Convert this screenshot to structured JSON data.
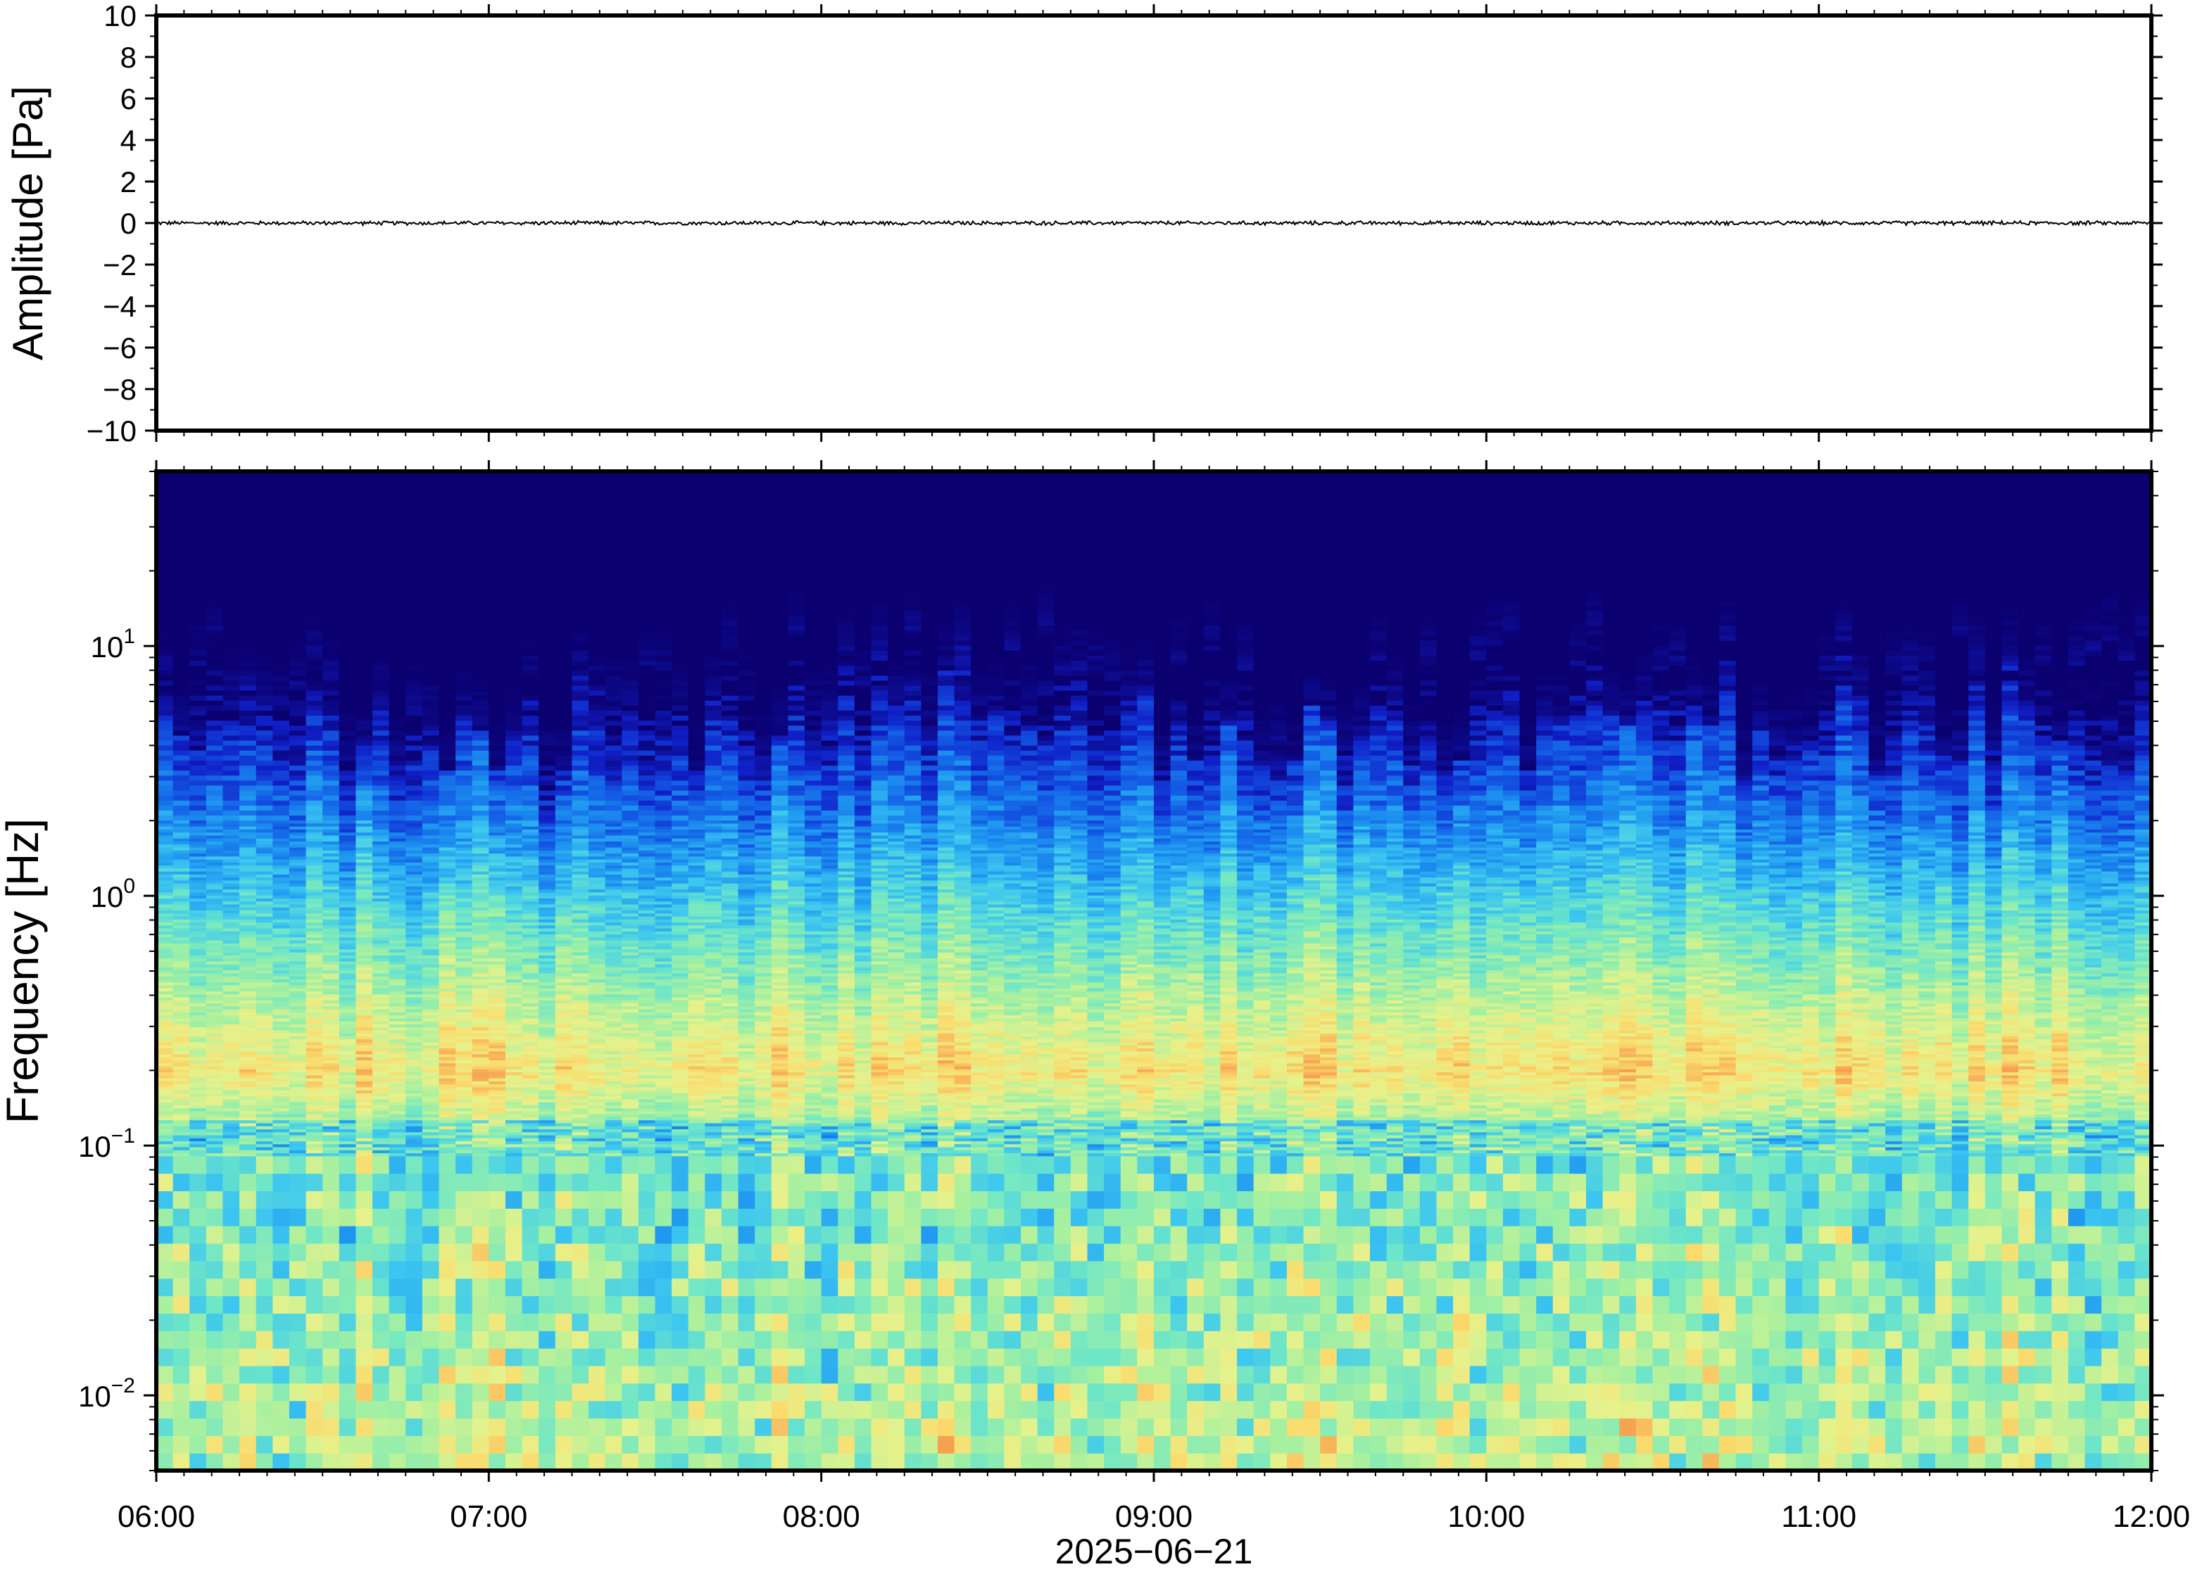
{
  "chart_data": [
    {
      "type": "line",
      "panel": "waveform",
      "ylabel": "Amplitude [Pa]",
      "ylim": [
        -10,
        10
      ],
      "yticks": [
        {
          "value": 10,
          "label": "10"
        },
        {
          "value": 8,
          "label": "8"
        },
        {
          "value": 6,
          "label": "6"
        },
        {
          "value": 4,
          "label": "4"
        },
        {
          "value": 2,
          "label": "2"
        },
        {
          "value": 0,
          "label": "0"
        },
        {
          "value": -2,
          "label": "−2"
        },
        {
          "value": -4,
          "label": "−4"
        },
        {
          "value": -6,
          "label": "−6"
        },
        {
          "value": -8,
          "label": "−8"
        },
        {
          "value": -10,
          "label": "−10"
        }
      ],
      "xlim_hours": [
        6,
        12
      ],
      "series": [
        {
          "trace_color": "#000000",
          "approx_amplitude_pa": 0.08,
          "mean_pa": 0
        }
      ]
    },
    {
      "type": "heatmap",
      "panel": "spectrogram",
      "ylabel": "Frequency [Hz]",
      "yscale": "log",
      "ylim_hz": [
        0.005,
        50
      ],
      "yticks": [
        {
          "value": 10,
          "base": "10",
          "exp": "1"
        },
        {
          "value": 1,
          "base": "10",
          "exp": "0"
        },
        {
          "value": 0.1,
          "base": "10",
          "exp": "−1"
        },
        {
          "value": 0.01,
          "base": "10",
          "exp": "−2"
        }
      ],
      "xlabel": "2025−06−21",
      "xlim_hours": [
        6,
        12
      ],
      "xticks": [
        {
          "value": 6,
          "label": "06:00"
        },
        {
          "value": 7,
          "label": "07:00"
        },
        {
          "value": 8,
          "label": "08:00"
        },
        {
          "value": 9,
          "label": "09:00"
        },
        {
          "value": 10,
          "label": "10:00"
        },
        {
          "value": 11,
          "label": "11:00"
        },
        {
          "value": 12,
          "label": "12:00"
        }
      ],
      "colormap": [
        "#0b0070",
        "#1020c8",
        "#1460e6",
        "#1e96f0",
        "#3cc6f0",
        "#6ee6c8",
        "#a6f0a0",
        "#e6f28c",
        "#fadc6e",
        "#f6a050"
      ],
      "features": {
        "microbarom_peak_hz": 0.2,
        "noise_ceiling_hz": 6,
        "time_columns": 120
      }
    }
  ]
}
